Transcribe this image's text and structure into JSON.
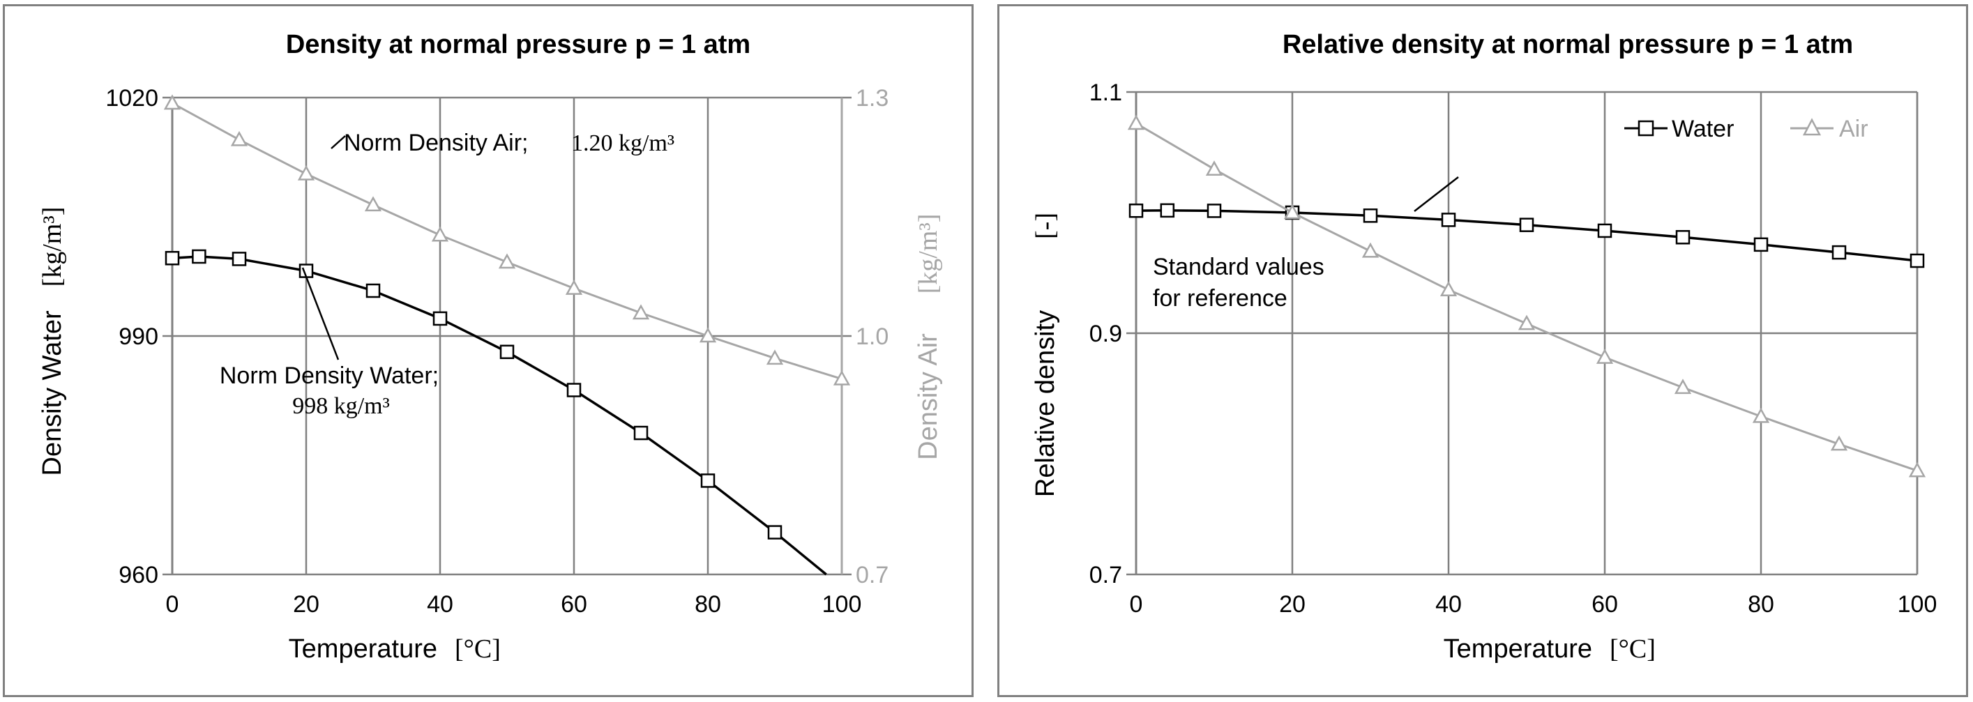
{
  "colors": {
    "water": "#000000",
    "air": "#a6a6a6",
    "grid": "#808080",
    "frame": "#808080"
  },
  "chart_data": [
    {
      "type": "line",
      "title": "Density at normal pressure p = 1 atm",
      "xlabel": "Temperature",
      "xunit": "[°C]",
      "ylabel": "Density Water",
      "yunit": "[kg/m³]",
      "y2label": "Density Air",
      "y2unit": "[kg/m³]",
      "xlim": [
        0,
        100
      ],
      "ylim": [
        960,
        1020
      ],
      "y2lim": [
        0.7,
        1.3
      ],
      "xticks": [
        "0",
        "20",
        "40",
        "60",
        "80",
        "100"
      ],
      "yticks": [
        "960",
        "990",
        "1020"
      ],
      "y2ticks": [
        "0.7",
        "1.0",
        "1.3"
      ],
      "grid": true,
      "series": [
        {
          "key": "water",
          "axis": "y",
          "marker": "square",
          "x": [
            0,
            4,
            10,
            20,
            30,
            40,
            50,
            60,
            70,
            80,
            90,
            100
          ],
          "values": [
            999.8,
            1000.0,
            999.7,
            998.2,
            995.7,
            992.2,
            988.0,
            983.2,
            977.8,
            971.8,
            965.3,
            958.4
          ]
        },
        {
          "key": "air",
          "axis": "y2",
          "marker": "triangle",
          "x": [
            0,
            10,
            20,
            30,
            40,
            50,
            60,
            70,
            80,
            90,
            100
          ],
          "values": [
            1.293,
            1.247,
            1.204,
            1.165,
            1.127,
            1.093,
            1.06,
            1.029,
            1.0,
            0.972,
            0.946
          ]
        }
      ],
      "annotations": [
        {
          "text": "Norm Density Air;",
          "value_text": "1.20 kg/m³"
        },
        {
          "text": "Norm Density Water;",
          "value_text": "998 kg/m³"
        }
      ]
    },
    {
      "type": "line",
      "title": "Relative density at normal pressure p = 1 atm",
      "xlabel": "Temperature",
      "xunit": "[°C]",
      "ylabel": "Relative density",
      "yunit": "[-]",
      "xlim": [
        0,
        100
      ],
      "ylim": [
        0.7,
        1.1
      ],
      "xticks": [
        "0",
        "20",
        "40",
        "60",
        "80",
        "100"
      ],
      "yticks": [
        "0.7",
        "0.9",
        "1.1"
      ],
      "grid": true,
      "legend_position": "top-right",
      "series": [
        {
          "name": "Water",
          "key": "water",
          "marker": "square",
          "x": [
            0,
            4,
            10,
            20,
            30,
            40,
            50,
            60,
            70,
            80,
            90,
            100
          ],
          "values": [
            1.0016,
            1.0018,
            1.0015,
            1.0,
            0.9975,
            0.994,
            0.9898,
            0.985,
            0.9796,
            0.9735,
            0.967,
            0.9601
          ]
        },
        {
          "name": "Air",
          "key": "air",
          "marker": "triangle",
          "x": [
            0,
            10,
            20,
            30,
            40,
            50,
            60,
            70,
            80,
            90,
            100
          ],
          "values": [
            1.074,
            1.036,
            1.0,
            0.968,
            0.936,
            0.908,
            0.88,
            0.855,
            0.831,
            0.808,
            0.786
          ]
        }
      ],
      "annotations": [
        {
          "text_line1": "Standard values",
          "text_line2": "for reference"
        }
      ]
    }
  ]
}
